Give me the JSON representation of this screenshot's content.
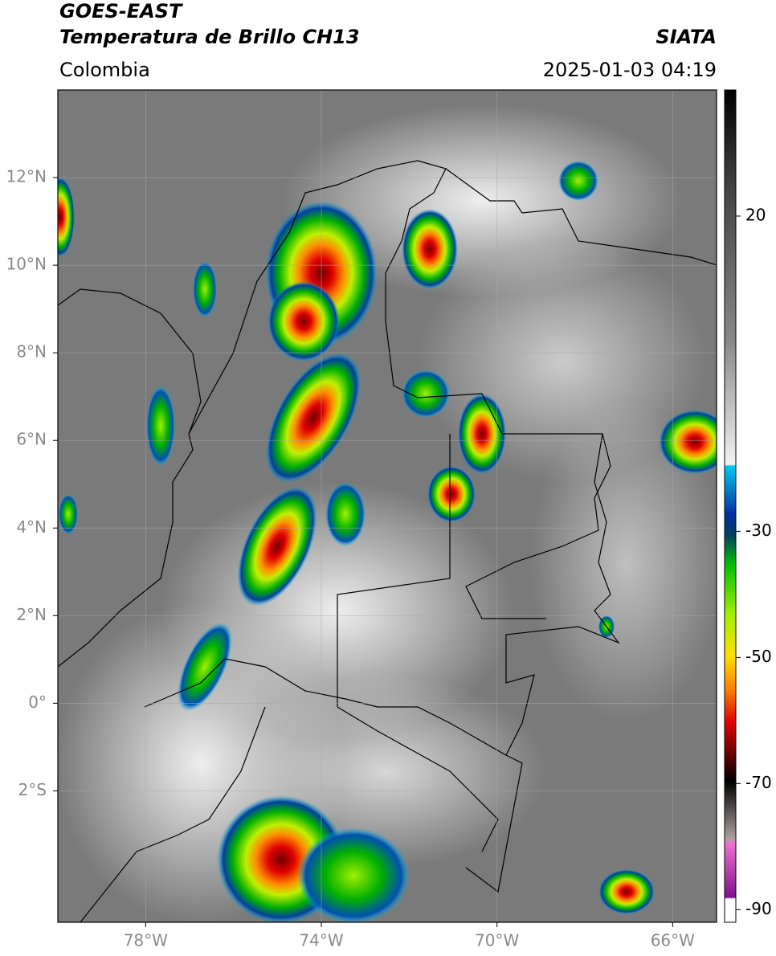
{
  "header": {
    "title": "GOES-EAST",
    "subtitle": "Temperatura de Brillo CH13",
    "source": "SIATA",
    "region": "Colombia",
    "datetime": "2025-01-03 04:19"
  },
  "map": {
    "lon_range": [
      -80,
      -65
    ],
    "lat_range": [
      -5,
      14
    ],
    "grid": true,
    "lon_ticks": [
      {
        "value": -78,
        "label": "78°W"
      },
      {
        "value": -74,
        "label": "74°W"
      },
      {
        "value": -70,
        "label": "70°W"
      },
      {
        "value": -66,
        "label": "66°W"
      }
    ],
    "lat_ticks": [
      {
        "value": 12,
        "label": "12°N"
      },
      {
        "value": 10,
        "label": "10°N"
      },
      {
        "value": 8,
        "label": "8°N"
      },
      {
        "value": 6,
        "label": "6°N"
      },
      {
        "value": 4,
        "label": "4°N"
      },
      {
        "value": 2,
        "label": "2°N"
      },
      {
        "value": 0,
        "label": "0°"
      },
      {
        "value": -2,
        "label": "2°S"
      }
    ]
  },
  "colorbar": {
    "range": [
      -92,
      40
    ],
    "ticks": [
      20,
      -30,
      -50,
      -70,
      -90
    ]
  }
}
